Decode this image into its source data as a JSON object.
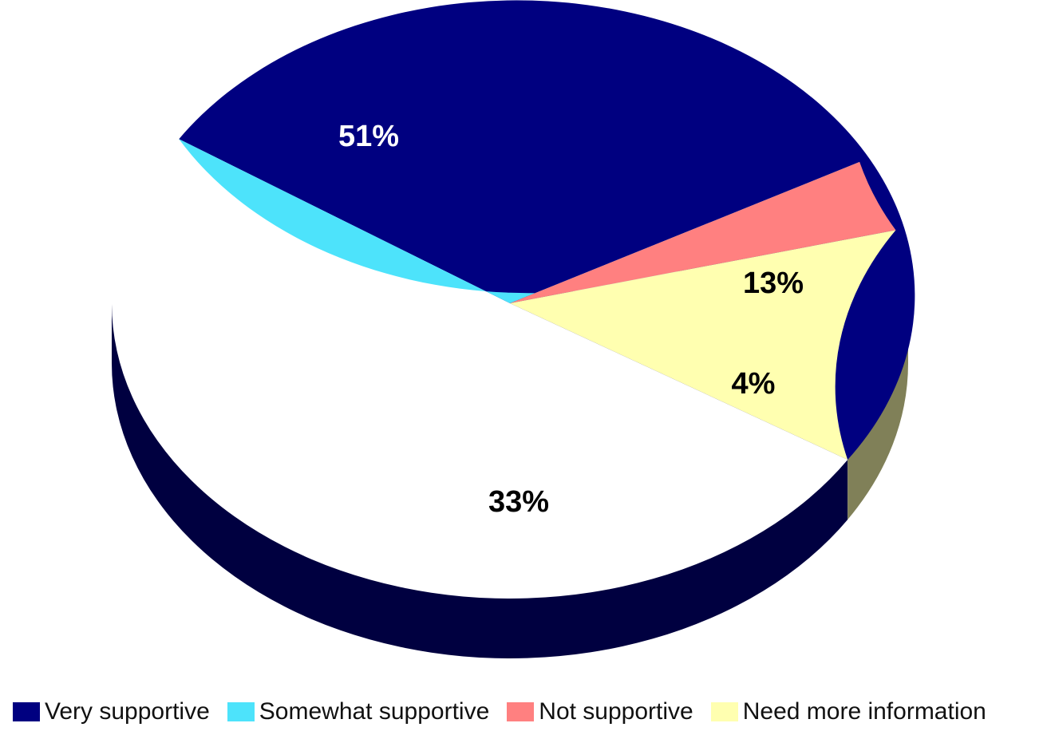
{
  "chart_data": {
    "type": "pie",
    "style": "3d",
    "categories": [
      "Very supportive",
      "Somewhat supportive",
      "Not supportive",
      "Need more information"
    ],
    "values": [
      51,
      33,
      4,
      13
    ],
    "value_labels": [
      "51%",
      "33%",
      "4%",
      "13%"
    ],
    "unit": "%",
    "colors": [
      "#000080",
      "#4DE3FB",
      "#FF8080",
      "#FFFFB0"
    ],
    "side_colors": [
      "#000040",
      "#25707E",
      "#804040",
      "#808058"
    ],
    "label_colors": [
      "#ffffff",
      "#000000",
      "#000000",
      "#000000"
    ],
    "legend_position": "bottom",
    "title": ""
  }
}
